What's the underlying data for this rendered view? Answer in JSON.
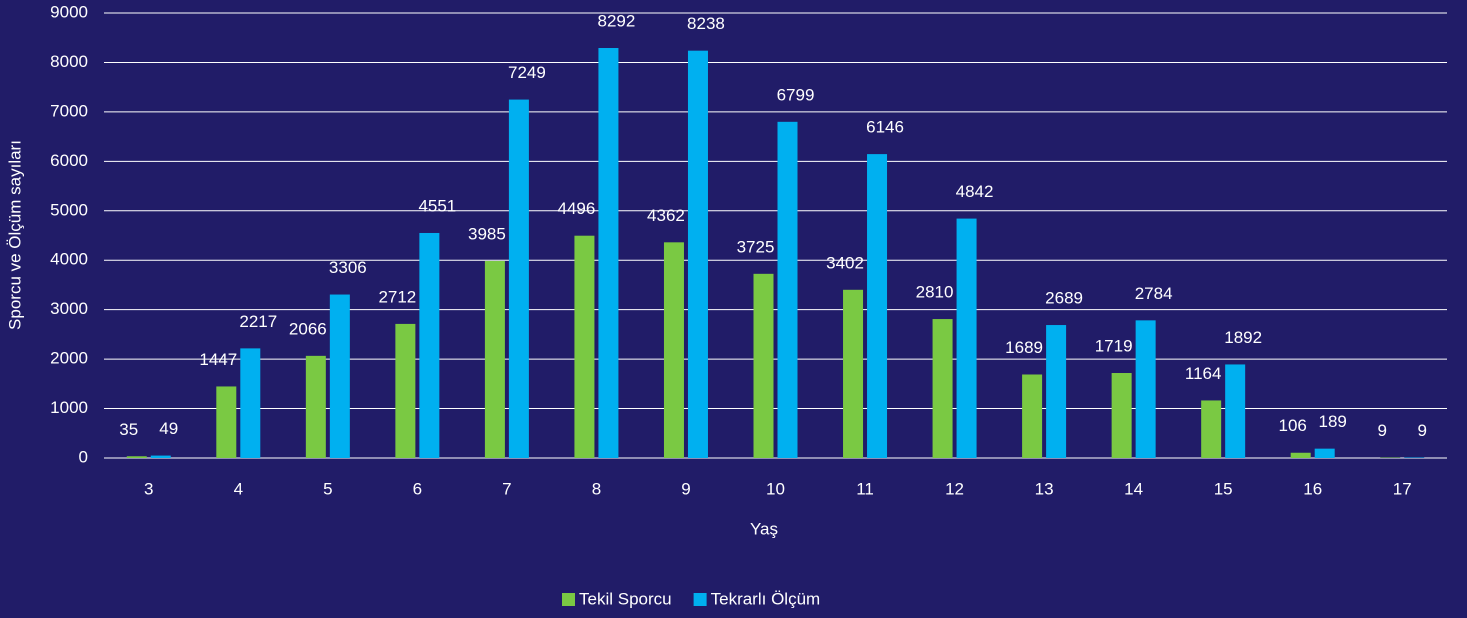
{
  "chart_data": {
    "type": "bar",
    "x_label": "Yaş",
    "y_label": "Sporcu ve Ölçüm sayıları",
    "categories": [
      "3",
      "4",
      "5",
      "6",
      "7",
      "8",
      "9",
      "10",
      "11",
      "12",
      "13",
      "14",
      "15",
      "16",
      "17"
    ],
    "series": [
      {
        "name": "Tekil Sporcu",
        "color": "#7ac943",
        "values": [
          35,
          1447,
          2066,
          2712,
          3985,
          4496,
          4362,
          3725,
          3402,
          2810,
          1689,
          1719,
          1164,
          106,
          9
        ]
      },
      {
        "name": "Tekrarlı Ölçüm",
        "color": "#00b0f0",
        "values": [
          49,
          2217,
          3306,
          4551,
          7249,
          8292,
          8238,
          6799,
          6146,
          4842,
          2689,
          2784,
          1892,
          189,
          9
        ]
      }
    ],
    "ylim": [
      0,
      9000
    ],
    "yticks": [
      0,
      1000,
      2000,
      3000,
      4000,
      5000,
      6000,
      7000,
      8000,
      9000
    ],
    "grid": true,
    "legend": "bottom"
  }
}
